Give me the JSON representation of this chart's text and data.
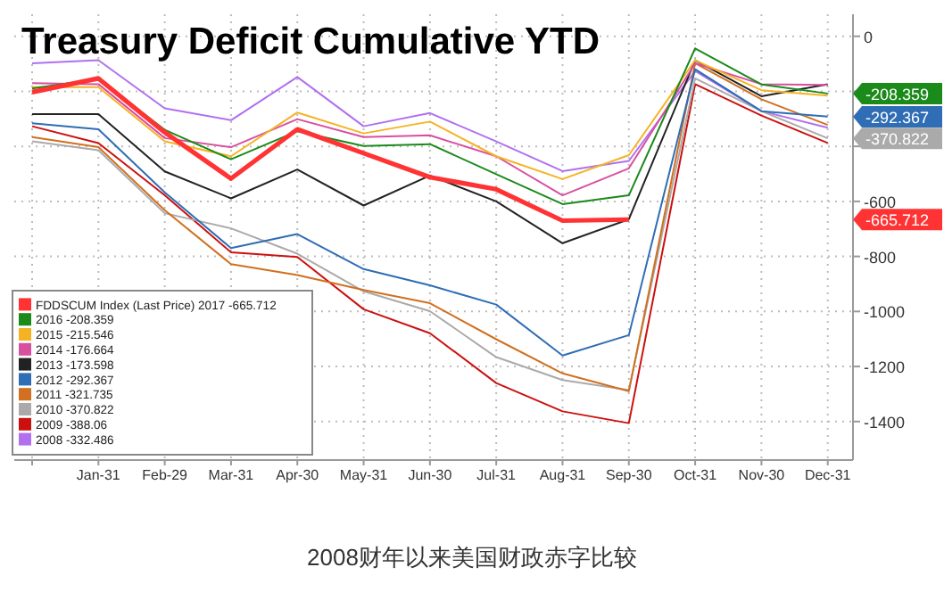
{
  "chart_data": {
    "type": "line",
    "title": "Treasury Deficit Cumulative YTD",
    "categories": [
      null,
      "Jan-31",
      "Feb-29",
      "Mar-31",
      "Apr-30",
      "May-31",
      "Jun-30",
      "Jul-31",
      "Aug-31",
      "Sep-30",
      "Oct-31",
      "Nov-30",
      "Dec-31"
    ],
    "series": [
      {
        "name": "FDDSCUM Index (Last Price) 2017 -665.712",
        "color": "#ff3333",
        "values": [
          -203,
          -153,
          -349,
          -517,
          -338,
          -425,
          -512,
          -556,
          -670,
          -666,
          null,
          null,
          null
        ]
      },
      {
        "name": "2016 -208.359",
        "color": "#1a8a1a",
        "values": [
          -190,
          -155,
          -340,
          -447,
          -345,
          -399,
          -392,
          -501,
          -610,
          -578,
          -44,
          -175,
          -208
        ]
      },
      {
        "name": "2015 -215.546",
        "color": "#f5b324",
        "values": [
          -185,
          -185,
          -382,
          -436,
          -277,
          -353,
          -310,
          -436,
          -519,
          -432,
          -87,
          -196,
          -216
        ]
      },
      {
        "name": "2014 -176.664",
        "color": "#d94fa0",
        "values": [
          -170,
          -174,
          -370,
          -403,
          -301,
          -366,
          -360,
          -436,
          -578,
          -480,
          -98,
          -174,
          -177
        ]
      },
      {
        "name": "2013 -173.598",
        "color": "#222222",
        "values": [
          -283,
          -283,
          -491,
          -589,
          -484,
          -615,
          -506,
          -600,
          -752,
          -665,
          -87,
          -218,
          -174
        ]
      },
      {
        "name": "2012 -292.367",
        "color": "#2f6db5",
        "values": [
          -316,
          -338,
          -567,
          -770,
          -719,
          -846,
          -905,
          -975,
          -1160,
          -1086,
          -120,
          -272,
          -292
        ]
      },
      {
        "name": "2011 -321.735",
        "color": "#d07020",
        "values": [
          -366,
          -403,
          -632,
          -828,
          -868,
          -922,
          -970,
          -1101,
          -1225,
          -1290,
          -98,
          -229,
          -322
        ]
      },
      {
        "name": "2010 -370.822",
        "color": "#aaaaaa",
        "values": [
          -382,
          -414,
          -643,
          -698,
          -790,
          -927,
          -999,
          -1166,
          -1249,
          -1286,
          -153,
          -272,
          -371
        ]
      },
      {
        "name": "2009 -388.06",
        "color": "#cc1010",
        "values": [
          -327,
          -388,
          -578,
          -785,
          -802,
          -992,
          -1079,
          -1260,
          -1363,
          -1406,
          -174,
          -288,
          -388
        ]
      },
      {
        "name": "2008 -332.486",
        "color": "#b070f0",
        "values": [
          -98,
          -87,
          -262,
          -305,
          -148,
          -327,
          -279,
          -382,
          -490,
          -453,
          -126,
          -272,
          -332
        ]
      }
    ],
    "ylim": [
      -1540,
      80
    ],
    "yticks": [
      0,
      {
        "value": -200,
        "label": null
      },
      {
        "value": -400,
        "label": null
      },
      -600,
      -800,
      -1000,
      -1200,
      -1400
    ],
    "grid": true,
    "legend": "bottom left",
    "marker": "none",
    "line_style": "solid",
    "annotations": [
      "-208.359",
      "-292.367",
      "-370.822",
      "-665.712",
      "2008财年以来美国财政赤字比较"
    ]
  }
}
